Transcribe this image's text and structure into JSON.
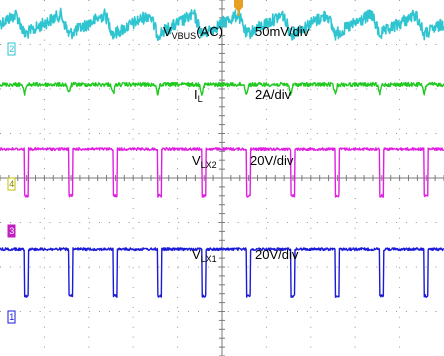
{
  "chart_data": {
    "type": "line",
    "title": "",
    "xlabel": "",
    "ylabel": "",
    "grid": true,
    "divisions": {
      "x": 10,
      "y": 8
    },
    "channel_markers": [
      "2",
      "4",
      "3",
      "1"
    ],
    "trigger_marker": "T",
    "series": [
      {
        "name_main": "V",
        "name_sub": "VBUS",
        "name_suffix": "(AC)",
        "scale": "50mV/div",
        "channel": "2",
        "color": "#2ec4d0",
        "waveform": "sawtooth-ripple",
        "period_div": 1.0,
        "amplitude_div": 0.45,
        "offset_div": 3.45
      },
      {
        "name_main": "I",
        "name_sub": "L",
        "name_suffix": "",
        "scale": "2A/div",
        "channel": "",
        "color": "#1fc91f",
        "waveform": "dip-pulses",
        "period_div": 1.0,
        "amplitude_div": 0.2,
        "offset_div": 2.1
      },
      {
        "name_main": "V",
        "name_sub": "LX2",
        "name_suffix": "",
        "scale": "20V/div",
        "channel": "4",
        "color": "#e020e0",
        "waveform": "low-pulses",
        "period_div": 1.0,
        "amplitude_div": 1.05,
        "offset_div": 0.65
      },
      {
        "name_main": "V",
        "name_sub": "LX1",
        "name_suffix": "",
        "scale": "20V/div",
        "channel": "1",
        "color": "#1a1ad8",
        "waveform": "low-pulses",
        "period_div": 1.0,
        "amplitude_div": 1.05,
        "offset_div": -1.6
      }
    ]
  },
  "colors": {
    "background": "#ffffff",
    "grid": "#7a7a7a",
    "trigger": "#e8a020"
  }
}
